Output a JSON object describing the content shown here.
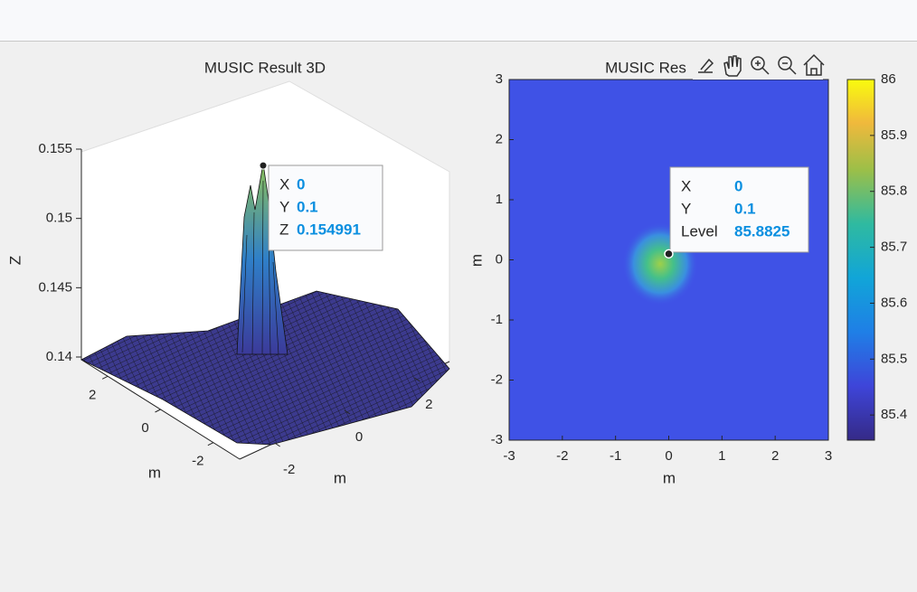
{
  "plot3d": {
    "title": "MUSIC Result 3D",
    "zlabel": "Z",
    "xlabel": "m",
    "ylabel": "m",
    "xlim": [
      -3,
      3
    ],
    "ylim": [
      -3,
      3
    ],
    "zlim": [
      0.14,
      0.155
    ],
    "xticks": [
      -2,
      0,
      2
    ],
    "yticks": [
      -2,
      0,
      2
    ],
    "zticks": [
      0.14,
      0.145,
      0.15,
      0.155
    ],
    "datatip": {
      "labels": [
        "X",
        "Y",
        "Z"
      ],
      "values": [
        0,
        0.1,
        0.154991
      ]
    }
  },
  "plot2d": {
    "title": "MUSIC Res",
    "xlabel": "m",
    "ylabel": "m",
    "xlim": [
      -3,
      3
    ],
    "ylim": [
      -3,
      3
    ],
    "xticks": [
      -3,
      -2,
      -1,
      0,
      1,
      2,
      3
    ],
    "yticks": [
      -3,
      -2,
      -1,
      0,
      1,
      2,
      3
    ],
    "datatip": {
      "labels": [
        "X",
        "Y",
        "Level"
      ],
      "values": [
        0,
        0.1,
        85.8825
      ]
    }
  },
  "colorbar": {
    "lim": [
      85.355,
      86
    ],
    "ticks": [
      85.4,
      85.5,
      85.6,
      85.7,
      85.8,
      85.9,
      86
    ]
  }
}
